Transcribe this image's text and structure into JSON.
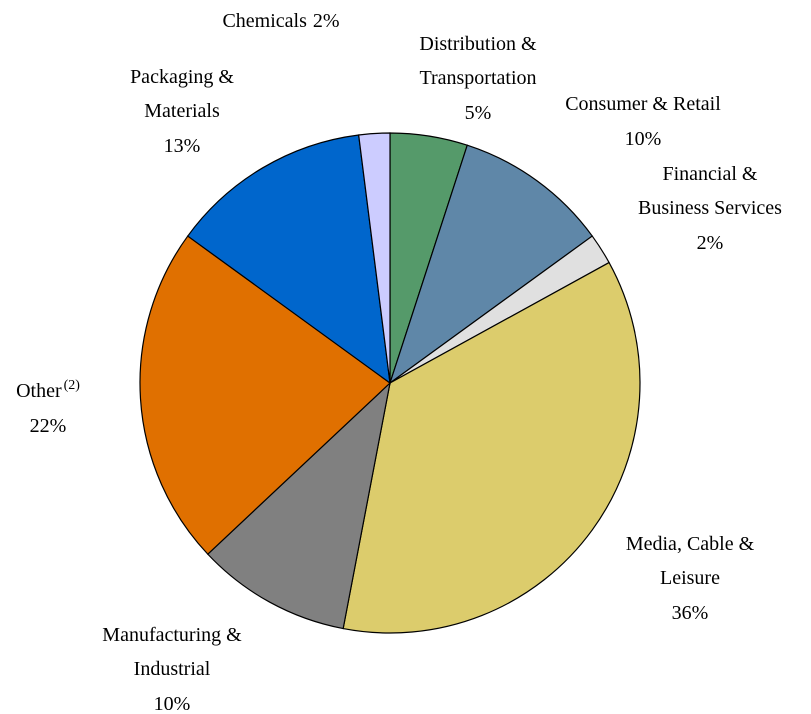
{
  "chart_data": {
    "type": "pie",
    "categories": [
      [
        "Distribution &",
        "Transportation"
      ],
      [
        "Consumer & Retail"
      ],
      [
        "Financial &",
        "Business Services"
      ],
      [
        "Media, Cable &",
        "Leisure"
      ],
      [
        "Manufacturing &",
        "Industrial"
      ],
      [
        "Other"
      ],
      [
        "Packaging &",
        "Materials"
      ],
      [
        "Chemicals"
      ]
    ],
    "notes": [
      null,
      null,
      null,
      null,
      null,
      "(2)",
      null,
      null
    ],
    "values": [
      5,
      10,
      2,
      36,
      10,
      22,
      13,
      2
    ],
    "value_labels": [
      "5%",
      "10%",
      "2%",
      "36%",
      "10%",
      "22%",
      "13%",
      "2%"
    ],
    "colors": [
      "#559a6a",
      "#5f87a8",
      "#e0e0e0",
      "#dccc6c",
      "#808080",
      "#e07000",
      "#0066cc",
      "#ccccff"
    ]
  }
}
